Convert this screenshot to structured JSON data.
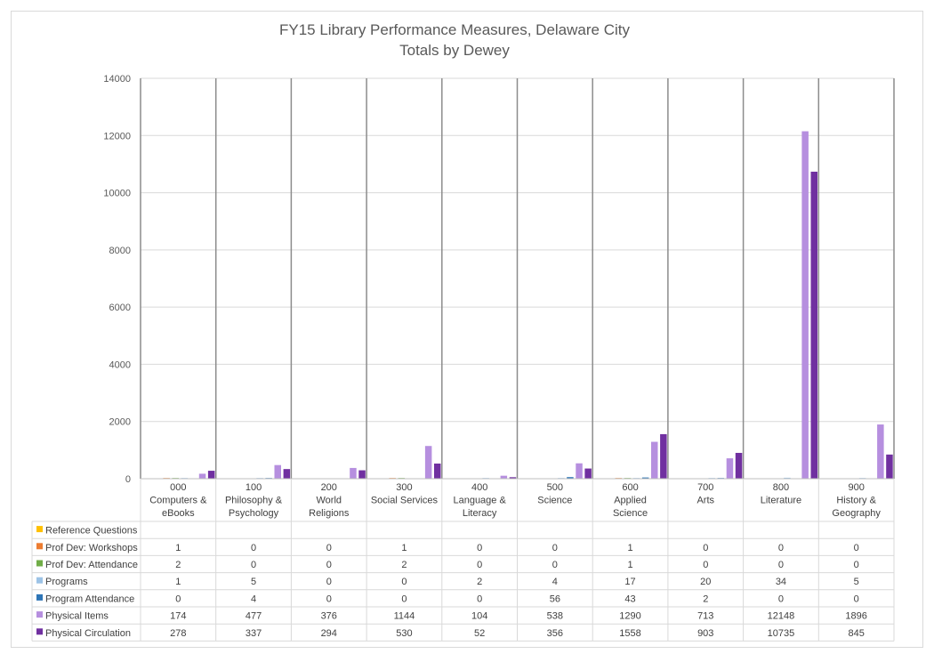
{
  "chart_data": {
    "type": "bar",
    "title": "FY15 Library Performance Measures, Delaware City",
    "subtitle": "Totals by Dewey",
    "xlabel": "",
    "ylabel": "",
    "ylim": [
      0,
      14000
    ],
    "yticks": [
      0,
      2000,
      4000,
      6000,
      8000,
      10000,
      12000,
      14000
    ],
    "grid": true,
    "legend": "data-table",
    "categories": [
      [
        "000",
        "Computers &",
        "eBooks"
      ],
      [
        "100",
        "Philosophy &",
        "Psychology"
      ],
      [
        "200",
        "World",
        "Religions"
      ],
      [
        "300",
        "Social Services"
      ],
      [
        "400",
        "Language &",
        "Literacy"
      ],
      [
        "500",
        "Science"
      ],
      [
        "600",
        "Applied",
        "Science"
      ],
      [
        "700",
        "Arts"
      ],
      [
        "800",
        "Literature"
      ],
      [
        "900",
        "History &",
        "Geography"
      ]
    ],
    "series": [
      {
        "name": "Reference Questions",
        "color": "#ffc000",
        "values": [
          null,
          null,
          null,
          null,
          null,
          null,
          null,
          null,
          null,
          null
        ]
      },
      {
        "name": "Prof Dev: Workshops",
        "color": "#ed7d31",
        "values": [
          1,
          0,
          0,
          1,
          0,
          0,
          1,
          0,
          0,
          0
        ]
      },
      {
        "name": "Prof Dev: Attendance",
        "color": "#70ad47",
        "values": [
          2,
          0,
          0,
          2,
          0,
          0,
          1,
          0,
          0,
          0
        ]
      },
      {
        "name": "Programs",
        "color": "#9dc3e6",
        "values": [
          1,
          5,
          0,
          0,
          2,
          4,
          17,
          20,
          34,
          5
        ]
      },
      {
        "name": "Program Attendance",
        "color": "#2e75b6",
        "values": [
          0,
          4,
          0,
          0,
          0,
          56,
          43,
          2,
          0,
          0
        ]
      },
      {
        "name": "Physical Items",
        "color": "#b68fdf",
        "values": [
          174,
          477,
          376,
          1144,
          104,
          538,
          1290,
          713,
          12148,
          1896
        ]
      },
      {
        "name": "Physical Circulation",
        "color": "#7030a0",
        "values": [
          278,
          337,
          294,
          530,
          52,
          356,
          1558,
          903,
          10735,
          845
        ]
      }
    ]
  }
}
